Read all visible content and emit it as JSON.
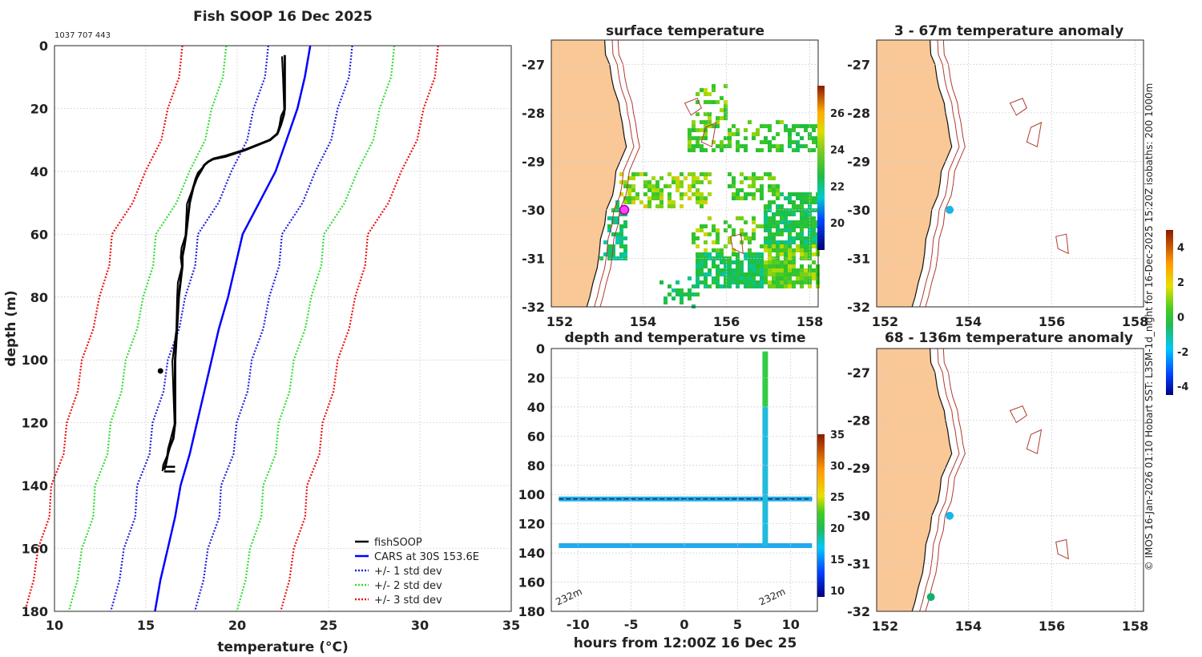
{
  "colors": {
    "land": "#f9c896",
    "isobath": "#b03a2e",
    "coast": "#111111",
    "fishsoop": "#000000",
    "cars": "#0000ff",
    "std1": "#2020e0",
    "std2": "#33dd33",
    "std3": "#ee1111",
    "dot": "#1ab4e6",
    "dot_deep": "#12b070"
  },
  "chart_data": [
    {
      "type": "line",
      "title": "Fish SOOP 16 Dec 2025",
      "id_label": "1037 707 443",
      "xlabel": "temperature (°C)",
      "ylabel": "depth (m)",
      "xlim": [
        10,
        35
      ],
      "ylim": [
        180,
        0
      ],
      "xticks": [
        "10",
        "15",
        "20",
        "25",
        "30",
        "35"
      ],
      "yticks": [
        "0",
        "20",
        "40",
        "60",
        "80",
        "100",
        "120",
        "140",
        "160",
        "180"
      ],
      "legend": [
        "fishSOOP",
        "CARS at 30S 153.6E",
        "+/- 1 std dev",
        "+/- 2 std dev",
        "+/- 3 std dev"
      ],
      "legend_position": "bottom-right",
      "cars_depth": [
        0,
        10,
        20,
        30,
        40,
        50,
        60,
        70,
        80,
        90,
        100,
        110,
        120,
        130,
        140,
        150,
        160,
        170,
        180
      ],
      "cars_temp": [
        24,
        23.7,
        23.3,
        22.7,
        22.1,
        21.2,
        20.3,
        19.9,
        19.5,
        19.0,
        18.6,
        18.2,
        17.8,
        17.4,
        16.9,
        16.6,
        16.2,
        15.8,
        15.5
      ],
      "std": [
        2.3,
        4.6,
        7.0
      ],
      "fishsoop_depth": [
        3,
        10,
        20,
        22,
        25,
        28,
        30,
        33,
        35,
        36,
        37,
        38,
        40,
        42,
        45,
        50,
        55,
        60,
        64,
        67,
        70,
        75,
        80,
        90,
        100,
        110,
        120,
        125,
        128,
        130,
        133,
        135
      ],
      "fishsoop_temp": [
        22.6,
        22.6,
        22.6,
        22.55,
        22.4,
        22.2,
        21.8,
        20.5,
        19.4,
        18.7,
        18.4,
        18.2,
        18.0,
        17.8,
        17.6,
        17.4,
        17.3,
        17.2,
        17.1,
        17.0,
        17.0,
        16.9,
        16.8,
        16.7,
        16.6,
        16.6,
        16.6,
        16.5,
        16.3,
        16.2,
        16.1,
        16.0
      ],
      "outlier": [
        15.8,
        103.5
      ]
    },
    {
      "type": "heatmap",
      "title": "surface temperature",
      "xticks": [
        "152",
        "154",
        "156",
        "158"
      ],
      "yticks": [
        "-27",
        "-28",
        "-29",
        "-30",
        "-31",
        "-32"
      ],
      "colorbar_ticks": [
        "20",
        "22",
        "24",
        "26"
      ],
      "colorbar_range": [
        18.5,
        27.5
      ],
      "marker": [
        153.55,
        -30.0
      ]
    },
    {
      "type": "scatter",
      "title": "3 - 67m temperature anomaly",
      "xticks": [
        "152",
        "154",
        "156",
        "158"
      ],
      "yticks": [
        "-27",
        "-28",
        "-29",
        "-30",
        "-31",
        "-32"
      ],
      "points": [
        [
          153.55,
          -30.0
        ]
      ],
      "colorbar_ticks": [
        "4",
        "2",
        "0",
        "-2",
        "-4"
      ],
      "colorbar_range": [
        -4.5,
        5
      ]
    },
    {
      "type": "scatter",
      "title": "68 - 136m temperature anomaly",
      "xticks": [
        "152",
        "154",
        "156",
        "158"
      ],
      "yticks": [
        "-27",
        "-28",
        "-29",
        "-30",
        "-31",
        "-32"
      ],
      "points": [
        [
          153.55,
          -30.0
        ],
        [
          153.1,
          -31.7
        ]
      ]
    },
    {
      "type": "scatter",
      "title": "depth and temperature vs time",
      "xlabel": "hours from 12:00Z 16 Dec 25",
      "xticks": [
        "-10",
        "-5",
        "0",
        "5",
        "10"
      ],
      "yticks": [
        "0",
        "20",
        "40",
        "60",
        "80",
        "100",
        "120",
        "140",
        "160",
        "180"
      ],
      "xlim": [
        -12.5,
        12.5
      ],
      "ylim": [
        180,
        0
      ],
      "bottom_depth_labels": [
        "232m",
        "232m"
      ],
      "colorbar_ticks": [
        "10",
        "15",
        "20",
        "25",
        "30",
        "35"
      ],
      "colorbar_range": [
        9,
        35
      ],
      "tracks": [
        {
          "name": "upper",
          "depth": 103,
          "temp": 16.5
        },
        {
          "name": "lower",
          "depth": 135,
          "temp": 16.2
        },
        {
          "name": "vertical",
          "hour": 7.6,
          "from_depth": 2,
          "to_depth": 135
        }
      ]
    }
  ],
  "side_text": "© IMOS 16-Jan-2026 01:10 Hobart SST: L3SM-1d_night for 16-Dec-2025 15:20Z isobaths: 200  1000m"
}
